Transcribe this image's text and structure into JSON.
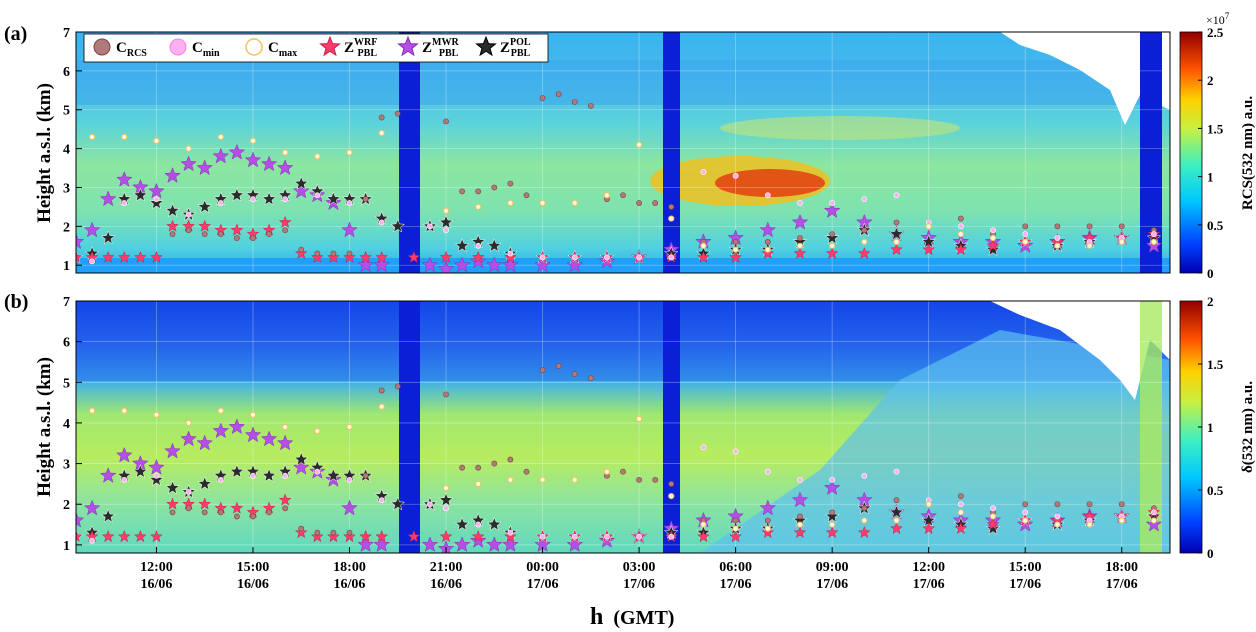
{
  "chart_data": [
    {
      "type": "heatmap",
      "panel_label": "(a)",
      "ylabel": "Height a.s.l. (km)",
      "ylim": [
        0.8,
        7
      ],
      "y_ticks": [
        1,
        2,
        3,
        4,
        5,
        6,
        7
      ],
      "colorbar": {
        "label": "RCS(532 nm) a.u.",
        "exponent": "×10",
        "exponent_power": "7",
        "range": [
          0,
          2.5
        ],
        "ticks": [
          0,
          0.5,
          1,
          1.5,
          2,
          2.5
        ]
      },
      "legend": {
        "placement": "top-left",
        "entries": [
          {
            "main": "C",
            "sub": "RCS",
            "sup": ""
          },
          {
            "main": "C",
            "sub": "min",
            "sup": ""
          },
          {
            "main": "C",
            "sub": "max",
            "sup": ""
          },
          {
            "main": "Z",
            "sub": "PBL",
            "sup": "WRF"
          },
          {
            "main": "Z",
            "sub": "PBL",
            "sup": "MWR"
          },
          {
            "main": "Z",
            "sub": "PBL",
            "sup": "POL"
          }
        ]
      },
      "series": [
        {
          "name": "Z_PBL^MWR",
          "x": [
            9.5,
            10,
            10.5,
            11,
            11.5,
            12,
            12.5,
            13,
            13.5,
            14,
            14.5,
            15,
            15.5,
            16,
            16.5,
            17,
            17.5,
            18,
            18.5,
            19,
            20.5,
            21,
            21.5,
            22,
            22.5,
            23,
            24,
            25,
            26,
            27,
            28,
            29,
            30,
            31,
            32,
            33,
            34,
            35,
            36,
            37,
            38,
            39,
            40,
            41,
            42,
            43
          ],
          "y": [
            1.6,
            1.9,
            2.7,
            3.2,
            3.0,
            2.9,
            3.3,
            3.6,
            3.5,
            3.8,
            3.9,
            3.7,
            3.6,
            3.5,
            2.9,
            2.8,
            2.6,
            1.9,
            1.0,
            1.0,
            1.0,
            0.9,
            1.0,
            1.1,
            1.0,
            1.0,
            1.0,
            1.0,
            1.1,
            1.2,
            1.4,
            1.6,
            1.7,
            1.9,
            2.1,
            2.4,
            2.1,
            1.8,
            1.7,
            1.6,
            1.6,
            1.5,
            1.6,
            1.7,
            1.7,
            1.5
          ]
        },
        {
          "name": "Z_PBL^POL",
          "x": [
            9.5,
            10,
            10.5,
            11,
            11.5,
            12,
            12.5,
            13,
            13.5,
            14,
            14.5,
            15,
            15.5,
            16,
            16.5,
            17,
            17.5,
            18,
            18.5,
            19,
            19.5,
            20.5,
            21,
            21.5,
            22,
            22.5,
            23,
            24,
            25,
            26,
            27,
            28,
            29,
            30,
            31,
            32,
            33,
            34,
            35,
            36,
            37,
            38,
            39,
            40,
            41,
            42,
            43
          ],
          "y": [
            1.2,
            1.3,
            1.7,
            2.7,
            2.8,
            2.6,
            2.4,
            2.3,
            2.5,
            2.7,
            2.8,
            2.8,
            2.7,
            2.8,
            3.1,
            2.9,
            2.7,
            2.7,
            2.7,
            2.2,
            2.0,
            2.0,
            2.1,
            1.5,
            1.6,
            1.5,
            1.3,
            1.2,
            1.2,
            1.2,
            1.2,
            1.3,
            1.3,
            1.4,
            1.4,
            1.6,
            1.7,
            1.9,
            1.8,
            1.6,
            1.5,
            1.4,
            1.6,
            1.5,
            1.6,
            1.7,
            1.7
          ]
        },
        {
          "name": "Z_PBL^WRF",
          "x": [
            9.5,
            10,
            10.5,
            11,
            11.5,
            12,
            12.5,
            13,
            13.5,
            14,
            14.5,
            15,
            15.5,
            16,
            16.5,
            17,
            17.5,
            18,
            18.5,
            19,
            20,
            21,
            22,
            23,
            24,
            25,
            26,
            27,
            28,
            29,
            30,
            31,
            32,
            33,
            34,
            35,
            36,
            37,
            38,
            39,
            40,
            41,
            42,
            43
          ],
          "y": [
            1.2,
            1.2,
            1.2,
            1.2,
            1.2,
            1.2,
            2.0,
            2.0,
            2.0,
            1.9,
            1.9,
            1.8,
            1.9,
            2.1,
            1.3,
            1.2,
            1.2,
            1.2,
            1.2,
            1.2,
            1.2,
            1.2,
            1.2,
            1.2,
            1.2,
            1.2,
            1.2,
            1.2,
            1.2,
            1.2,
            1.2,
            1.3,
            1.3,
            1.3,
            1.3,
            1.4,
            1.4,
            1.4,
            1.5,
            1.6,
            1.6,
            1.7,
            1.7,
            1.8
          ]
        },
        {
          "name": "C_RCS",
          "x": [
            12.5,
            13,
            13.5,
            14,
            14.5,
            15,
            15.5,
            16,
            16.5,
            17,
            17.5,
            18,
            18.5,
            19,
            19.5,
            21,
            21.5,
            22,
            22.5,
            23,
            23.5,
            24,
            24.5,
            25,
            25.5,
            26,
            26.5,
            27,
            27.5,
            28,
            29,
            30,
            31,
            32,
            33,
            34,
            35,
            36,
            37,
            38,
            39,
            40,
            41,
            42,
            43
          ],
          "y": [
            1.8,
            1.9,
            1.8,
            1.8,
            1.7,
            1.7,
            1.8,
            1.9,
            1.4,
            1.3,
            1.3,
            1.3,
            2.7,
            4.8,
            4.9,
            4.7,
            2.9,
            2.9,
            3.0,
            3.1,
            2.8,
            5.3,
            5.4,
            5.2,
            5.1,
            2.7,
            2.8,
            2.6,
            2.6,
            2.5,
            1.6,
            1.6,
            1.6,
            1.7,
            1.8,
            1.9,
            2.1,
            2.1,
            2.2,
            1.8,
            2.0,
            2.0,
            2.0,
            2.0,
            1.9
          ]
        },
        {
          "name": "C_min",
          "x": [
            10,
            11,
            12,
            13,
            14,
            15,
            16,
            17,
            18,
            19,
            20.5,
            21,
            22,
            23,
            24,
            25,
            26,
            27,
            28,
            29,
            30,
            31,
            32,
            33,
            34,
            35,
            36,
            37,
            38,
            39,
            40,
            41,
            42,
            43
          ],
          "y": [
            1.1,
            2.6,
            2.7,
            2.3,
            2.6,
            2.7,
            2.7,
            2.8,
            2.6,
            2.1,
            2.0,
            1.9,
            1.5,
            1.3,
            1.2,
            1.2,
            1.2,
            1.2,
            1.2,
            3.4,
            3.3,
            2.8,
            2.6,
            2.6,
            2.7,
            2.8,
            2.1,
            2.0,
            1.9,
            1.8,
            1.7,
            1.6,
            1.7,
            1.8
          ]
        },
        {
          "name": "C_max",
          "x": [
            10,
            11,
            12,
            13,
            14,
            15,
            16,
            17,
            18,
            19,
            21,
            22,
            23,
            24,
            25,
            26,
            27,
            28,
            29,
            30,
            31,
            32,
            33,
            34,
            35,
            36,
            37,
            38,
            39,
            40,
            41,
            42,
            43
          ],
          "y": [
            4.3,
            4.3,
            4.2,
            4.0,
            4.3,
            4.2,
            3.9,
            3.8,
            3.9,
            4.4,
            2.4,
            2.5,
            2.6,
            2.6,
            2.6,
            2.8,
            4.1,
            2.2,
            1.5,
            1.4,
            1.4,
            1.5,
            1.5,
            1.6,
            1.6,
            2.0,
            1.8,
            1.7,
            1.6,
            1.5,
            1.5,
            1.6,
            1.6
          ]
        }
      ]
    },
    {
      "type": "heatmap",
      "panel_label": "(b)",
      "ylabel": "Height a.s.l. (km)",
      "ylim": [
        0.8,
        7
      ],
      "y_ticks": [
        1,
        2,
        3,
        4,
        5,
        6,
        7
      ],
      "colorbar": {
        "label": "δ(532 nm) a.u.",
        "range": [
          0,
          2
        ],
        "ticks": [
          0,
          0.5,
          1,
          1.5,
          2
        ]
      },
      "xlabel_main": "h",
      "xlabel_unit": "(GMT)",
      "x_range_hours": [
        9.5,
        43.5
      ],
      "x_ticks": [
        {
          "h": 12,
          "time": "12:00",
          "date": "16/06"
        },
        {
          "h": 15,
          "time": "15:00",
          "date": "16/06"
        },
        {
          "h": 18,
          "time": "18:00",
          "date": "16/06"
        },
        {
          "h": 21,
          "time": "21:00",
          "date": "16/06"
        },
        {
          "h": 24,
          "time": "00:00",
          "date": "17/06"
        },
        {
          "h": 27,
          "time": "03:00",
          "date": "17/06"
        },
        {
          "h": 30,
          "time": "06:00",
          "date": "17/06"
        },
        {
          "h": 33,
          "time": "09:00",
          "date": "17/06"
        },
        {
          "h": 36,
          "time": "12:00",
          "date": "17/06"
        },
        {
          "h": 39,
          "time": "15:00",
          "date": "17/06"
        },
        {
          "h": 42,
          "time": "18:00",
          "date": "17/06"
        }
      ],
      "data_gaps_hours": [
        [
          20.0,
          20.4
        ],
        [
          28.2,
          28.5
        ]
      ]
    }
  ],
  "colors": {
    "wrf": "#ff3b6b",
    "mwr": "#b44ee6",
    "pol": "#2b2b2b",
    "c_rcs": "#b07a7a",
    "c_min": "#ffb0f0",
    "c_max": "#f4c060",
    "gap": "#0a1fd6"
  }
}
